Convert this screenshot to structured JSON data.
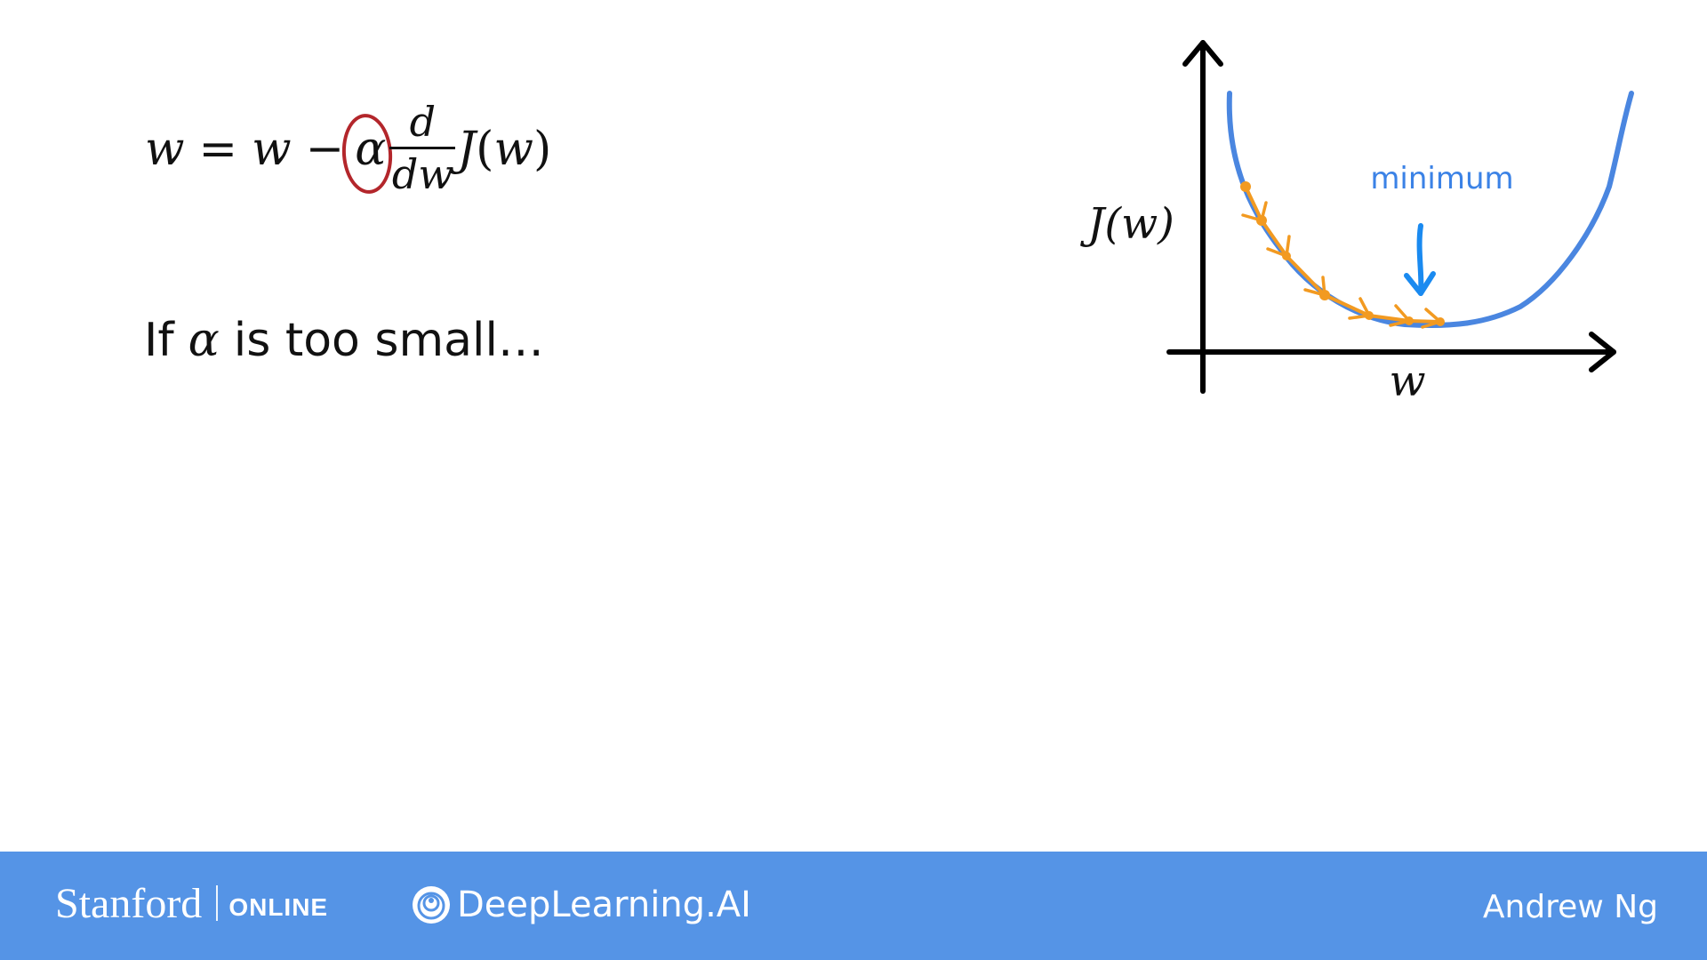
{
  "equation": {
    "lhs": "w",
    "equals": "=",
    "w": "w",
    "minus": "−",
    "alpha": "α",
    "d_num": "d",
    "d_den": "dw",
    "func": "J",
    "open_paren": "(",
    "arg": "w",
    "close_paren": ")"
  },
  "caption": {
    "prefix": "If",
    "alpha": "α",
    "suffix": "is too small…"
  },
  "plot": {
    "y_label": "J(w)",
    "x_label": "w",
    "annotation": "minimum",
    "colors": {
      "curve": "#4a86e0",
      "annotation": "#3b82e6",
      "arrow": "#1a8af0",
      "steps": "#f29a21",
      "axes": "#000000"
    }
  },
  "footer": {
    "stanford_word": "Stanford",
    "stanford_online": "ONLINE",
    "deeplearning_word": "DeepLearning.AI",
    "author": "Andrew Ng",
    "colors": {
      "background": "#5594e6",
      "text": "#ffffff"
    }
  }
}
